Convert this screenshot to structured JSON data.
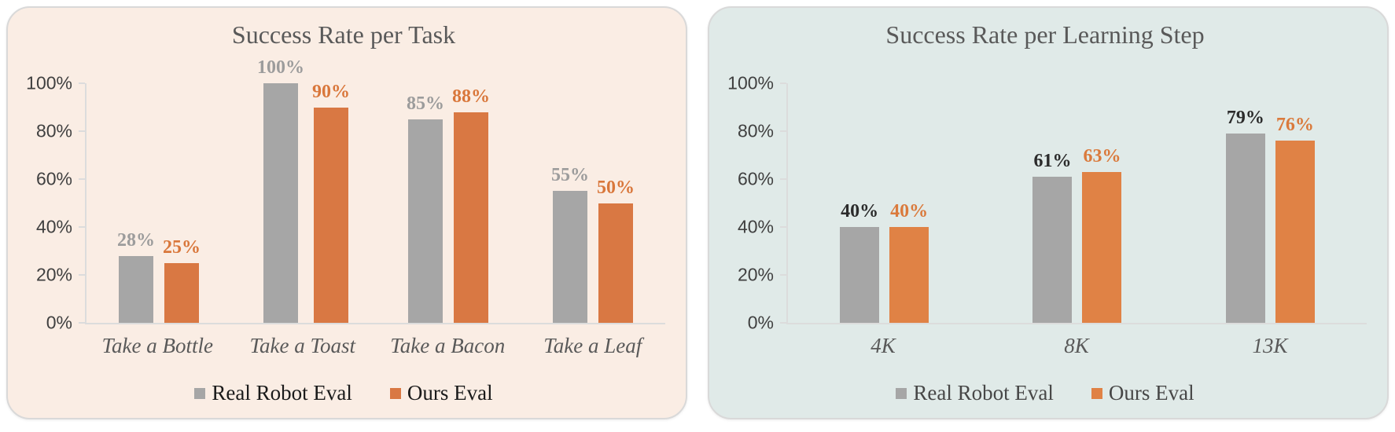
{
  "chart_data": [
    {
      "type": "bar",
      "title": "Success Rate per Task",
      "panel_bg": "#FAEDE4",
      "legend_text_color": "#1A1A1A",
      "legend_position": "bottom",
      "grid": false,
      "ylim": [
        0,
        100
      ],
      "y_tick_labels": [
        "100%",
        "80%",
        "60%",
        "40%",
        "20%",
        "0%"
      ],
      "categories": [
        "Take a Bottle",
        "Take a Toast",
        "Take a Bacon",
        "Take a Leaf"
      ],
      "series": [
        {
          "name": "Real Robot Eval",
          "color": "#A6A6A6",
          "label_color": "#9C9C9C",
          "values": [
            28,
            100,
            85,
            55
          ],
          "labels": [
            "28%",
            "100%",
            "85%",
            "55%"
          ]
        },
        {
          "name": "Ours Eval",
          "color": "#D97843",
          "label_color": "#D9773B",
          "values": [
            25,
            90,
            88,
            50
          ],
          "labels": [
            "25%",
            "90%",
            "88%",
            "50%"
          ]
        }
      ]
    },
    {
      "type": "bar",
      "title": "Success Rate per Learning Step",
      "panel_bg": "#E0EAE8",
      "legend_text_color": "#474747",
      "legend_position": "bottom",
      "grid": false,
      "ylim": [
        0,
        100
      ],
      "y_tick_labels": [
        "100%",
        "80%",
        "60%",
        "40%",
        "20%",
        "0%"
      ],
      "categories": [
        "4K",
        "8K",
        "13K"
      ],
      "series": [
        {
          "name": "Real Robot Eval",
          "color": "#A6A6A6",
          "label_color": "#2B2B2B",
          "values": [
            40,
            61,
            79
          ],
          "labels": [
            "40%",
            "61%",
            "79%"
          ]
        },
        {
          "name": "Ours Eval",
          "color": "#E08245",
          "label_color": "#DA7A3C",
          "values": [
            40,
            63,
            76
          ],
          "labels": [
            "40%",
            "63%",
            "76%"
          ]
        }
      ]
    }
  ]
}
